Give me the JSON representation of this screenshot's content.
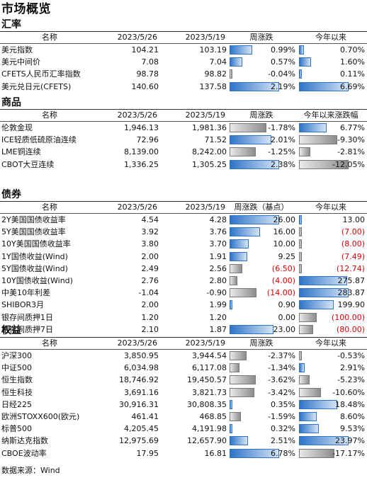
{
  "title": "市场概览",
  "source": "数据来源：Wind",
  "colors": {
    "positive_bar": "#2e74c8",
    "negative_bar": "#8c8c8c",
    "negative_text": "#e00000"
  },
  "sections": [
    {
      "id": "fx",
      "title": "汇率",
      "headers": [
        "名称",
        "2023/5/26",
        "2023/5/19",
        "周涨跌",
        "今年以来"
      ],
      "rows": [
        {
          "name": "美元指数",
          "v1": "104.21",
          "v2": "103.19",
          "ch": "0.99%",
          "ch_val": 0.99,
          "ytd": "0.70%",
          "ytd_val": 0.7
        },
        {
          "name": "美元中间价",
          "v1": "7.08",
          "v2": "7.04",
          "ch": "0.57%",
          "ch_val": 0.57,
          "ytd": "1.60%",
          "ytd_val": 1.6
        },
        {
          "name": "CFETS人民币汇率指数",
          "v1": "98.78",
          "v2": "98.82",
          "ch": "-0.04%",
          "ch_val": -0.04,
          "ytd": "0.11%",
          "ytd_val": 0.11
        },
        {
          "name": "美元兑日元(CFETS)",
          "v1": "140.60",
          "v2": "137.58",
          "ch": "2.19%",
          "ch_val": 2.19,
          "ytd": "6.69%",
          "ytd_val": 6.69
        }
      ],
      "ch_max": 2.19,
      "ytd_max": 6.69
    },
    {
      "id": "commodity",
      "title": "商品",
      "headers": [
        "名称",
        "2023/5/26",
        "2023/5/19",
        "周涨跌",
        "今年以来涨跌幅"
      ],
      "rows": [
        {
          "name": "伦敦金现",
          "v1": "1,946.13",
          "v2": "1,981.36",
          "ch": "-1.78%",
          "ch_val": -1.78,
          "ytd": "6.77%",
          "ytd_val": 6.77
        },
        {
          "name": "ICE轻质低硫原油连续",
          "v1": "72.96",
          "v2": "71.52",
          "ch": "2.01%",
          "ch_val": 2.01,
          "ytd": "-9.30%",
          "ytd_val": -9.3
        },
        {
          "name": "LME铜连续",
          "v1": "8,139.00",
          "v2": "8,242.00",
          "ch": "-1.25%",
          "ch_val": -1.25,
          "ytd": "-2.81%",
          "ytd_val": -2.81
        },
        {
          "name": "CBOT大豆连续",
          "v1": "1,336.25",
          "v2": "1,305.25",
          "ch": "2.38%",
          "ch_val": 2.38,
          "ytd": "-12.05%",
          "ytd_val": -12.05
        }
      ],
      "ch_max": 2.38,
      "ytd_max": 12.05
    },
    {
      "id": "bond",
      "title": "债券",
      "headers": [
        "名称",
        "2023/5/26",
        "2023/5/19",
        "周涨跌（基点）",
        "今年以来"
      ],
      "rows": [
        {
          "name": "2Y美国国债收益率",
          "v1": "4.54",
          "v2": "4.28",
          "ch": "26.00",
          "ch_val": 26.0,
          "ytd": "13.00",
          "ytd_val": 13.0
        },
        {
          "name": "5Y美国国债收益率",
          "v1": "3.92",
          "v2": "3.76",
          "ch": "16.00",
          "ch_val": 16.0,
          "ytd": "(7.00)",
          "ytd_val": -7.0
        },
        {
          "name": "10Y美国国债收益率",
          "v1": "3.80",
          "v2": "3.70",
          "ch": "10.00",
          "ch_val": 10.0,
          "ytd": "(8.00)",
          "ytd_val": -8.0
        },
        {
          "name": "1Y国债收益(Wind)",
          "v1": "2.00",
          "v2": "1.91",
          "ch": "9.25",
          "ch_val": 9.25,
          "ytd": "(7.49)",
          "ytd_val": -7.49
        },
        {
          "name": "5Y国债收益(Wind)",
          "v1": "2.49",
          "v2": "2.56",
          "ch": "(6.50)",
          "ch_val": -6.5,
          "ytd": "(12.74)",
          "ytd_val": -12.74
        },
        {
          "name": "10Y国债收益(Wind)",
          "v1": "2.76",
          "v2": "2.80",
          "ch": "(4.00)",
          "ch_val": -4.0,
          "ytd": "275.87",
          "ytd_val": 275.87
        },
        {
          "name": "中美10年利差",
          "v1": "-1.04",
          "v2": "-0.90",
          "ch": "(14.00)",
          "ch_val": -14.0,
          "ytd": "283.87",
          "ytd_val": 283.87
        },
        {
          "name": "SHIBOR3月",
          "v1": "2.00",
          "v2": "1.99",
          "ch": "0.90",
          "ch_val": 0.9,
          "ytd": "199.90",
          "ytd_val": 199.9
        },
        {
          "name": "银存间质押1日",
          "v1": "1.20",
          "v2": "1.20",
          "ch": "0.00",
          "ch_val": 0.0,
          "ytd": "(100.00)",
          "ytd_val": -100.0
        },
        {
          "name": "银存间质押7日",
          "v1": "2.10",
          "v2": "1.87",
          "ch": "23.00",
          "ch_val": 23.0,
          "ytd": "(80.00)",
          "ytd_val": -80.0
        }
      ],
      "ch_max": 26.0,
      "ytd_max": 283.87
    },
    {
      "id": "equity",
      "title": "权益",
      "headers": [
        "名称",
        "2023/5/26",
        "2023/5/19",
        "周涨跌",
        "今年以来"
      ],
      "rows": [
        {
          "name": "沪深300",
          "v1": "3,850.95",
          "v2": "3,944.54",
          "ch": "-2.37%",
          "ch_val": -2.37,
          "ytd": "-0.53%",
          "ytd_val": -0.53
        },
        {
          "name": "中证500",
          "v1": "6,034.98",
          "v2": "6,117.08",
          "ch": "-1.34%",
          "ch_val": -1.34,
          "ytd": "2.91%",
          "ytd_val": 2.91
        },
        {
          "name": "恒生指数",
          "v1": "18,746.92",
          "v2": "19,450.57",
          "ch": "-3.62%",
          "ch_val": -3.62,
          "ytd": "-5.23%",
          "ytd_val": -5.23
        },
        {
          "name": "恒生科技",
          "v1": "3,691.16",
          "v2": "3,821.73",
          "ch": "-3.42%",
          "ch_val": -3.42,
          "ytd": "-10.60%",
          "ytd_val": -10.6
        },
        {
          "name": "日经225",
          "v1": "30,916.31",
          "v2": "30,808.35",
          "ch": "0.35%",
          "ch_val": 0.35,
          "ytd": "18.48%",
          "ytd_val": 18.48
        },
        {
          "name": "欧洲STOXX600(欧元)",
          "v1": "461.41",
          "v2": "468.85",
          "ch": "-1.59%",
          "ch_val": -1.59,
          "ytd": "8.60%",
          "ytd_val": 8.6
        },
        {
          "name": "标普500",
          "v1": "4,205.45",
          "v2": "4,191.98",
          "ch": "0.32%",
          "ch_val": 0.32,
          "ytd": "9.53%",
          "ytd_val": 9.53
        },
        {
          "name": "纳斯达克指数",
          "v1": "12,975.69",
          "v2": "12,657.90",
          "ch": "2.51%",
          "ch_val": 2.51,
          "ytd": "23.97%",
          "ytd_val": 23.97
        },
        {
          "name": "CBOE波动率",
          "v1": "17.95",
          "v2": "16.81",
          "ch": "6.78%",
          "ch_val": 6.78,
          "ytd": "-17.17%",
          "ytd_val": -17.17
        }
      ],
      "ch_max": 6.78,
      "ytd_max": 23.97
    }
  ]
}
